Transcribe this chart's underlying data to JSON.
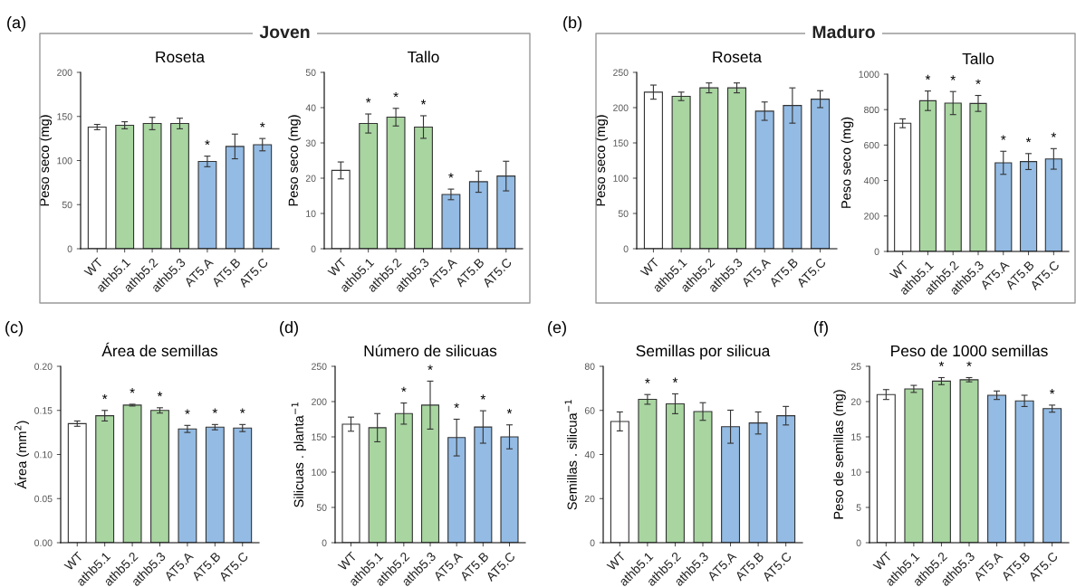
{
  "chart_data": [
    {
      "type": "bar",
      "title": "Roseta",
      "ylabel": "Peso seco (mg)",
      "categories": [
        "WT",
        "athb5.1",
        "athb5.2",
        "athb5.3",
        "AT5.A",
        "AT5.B",
        "AT5.C"
      ],
      "colors": [
        "#ffffff",
        "#a8d5a0",
        "#a8d5a0",
        "#a8d5a0",
        "#93bbe4",
        "#93bbe4",
        "#93bbe4"
      ],
      "values": [
        138,
        140,
        142,
        142,
        99,
        116,
        118
      ],
      "errors": [
        3,
        4,
        7,
        6,
        6,
        14,
        7
      ],
      "ylim": [
        0,
        200
      ],
      "yticks": [
        0,
        50,
        100,
        150,
        200
      ],
      "grid": false,
      "legend": false,
      "annotations": [
        "(a)",
        "Joven",
        {
          "text": "*",
          "x": "AT5.A",
          "y": 105
        },
        {
          "text": "*",
          "x": "AT5.C",
          "y": 125
        }
      ]
    },
    {
      "type": "bar",
      "title": "Tallo",
      "ylabel": "Peso seco (mg)",
      "categories": [
        "WT",
        "athb5.1",
        "athb5.2",
        "athb5.3",
        "AT5.A",
        "AT5.B",
        "AT5.C"
      ],
      "colors": [
        "#ffffff",
        "#a8d5a0",
        "#a8d5a0",
        "#a8d5a0",
        "#93bbe4",
        "#93bbe4",
        "#93bbe4"
      ],
      "values": [
        22.2,
        35.5,
        37.3,
        34.5,
        15.4,
        19,
        20.6
      ],
      "errors": [
        2.4,
        2.7,
        2.5,
        3.2,
        1.5,
        3,
        4.2
      ],
      "ylim": [
        0,
        50
      ],
      "yticks": [
        0,
        10,
        20,
        30,
        40,
        50
      ],
      "grid": false,
      "legend": false,
      "annotations": [
        {
          "text": "*",
          "x": "athb5.1",
          "y": 38.2
        },
        {
          "text": "*",
          "x": "athb5.2",
          "y": 39.8
        },
        {
          "text": "*",
          "x": "athb5.3",
          "y": 37.7
        },
        {
          "text": "*",
          "x": "AT5.A",
          "y": 16.9
        }
      ]
    },
    {
      "type": "bar",
      "title": "Roseta",
      "ylabel": "Peso seco (mg)",
      "categories": [
        "WT",
        "athb5.1",
        "athb5.2",
        "athb5.3",
        "AT5.A",
        "AT5.B",
        "AT5.C"
      ],
      "colors": [
        "#ffffff",
        "#a8d5a0",
        "#a8d5a0",
        "#a8d5a0",
        "#93bbe4",
        "#93bbe4",
        "#93bbe4"
      ],
      "values": [
        222,
        216,
        228,
        228,
        195,
        203,
        212
      ],
      "errors": [
        10,
        6,
        7,
        7,
        13,
        25,
        12
      ],
      "ylim": [
        0,
        250
      ],
      "yticks": [
        0,
        50,
        100,
        150,
        200,
        250
      ],
      "grid": false,
      "legend": false,
      "annotations": [
        "(b)",
        "Maduro"
      ]
    },
    {
      "type": "bar",
      "title": "Tallo",
      "ylabel": "Peso seco (mg)",
      "categories": [
        "WT",
        "athb5.1",
        "athb5.2",
        "athb5.3",
        "AT5.A",
        "AT5.B",
        "AT5.C"
      ],
      "colors": [
        "#ffffff",
        "#a8d5a0",
        "#a8d5a0",
        "#a8d5a0",
        "#93bbe4",
        "#93bbe4",
        "#93bbe4"
      ],
      "values": [
        723,
        850,
        837,
        835,
        500,
        507,
        522
      ],
      "errors": [
        25,
        55,
        65,
        45,
        65,
        45,
        58
      ],
      "ylim": [
        0,
        1000
      ],
      "yticks": [
        0,
        200,
        400,
        600,
        800,
        1000
      ],
      "grid": false,
      "legend": false,
      "annotations": [
        {
          "text": "*",
          "x": "athb5.1",
          "y": 905
        },
        {
          "text": "*",
          "x": "athb5.2",
          "y": 902
        },
        {
          "text": "*",
          "x": "athb5.3",
          "y": 880
        },
        {
          "text": "*",
          "x": "AT5.A",
          "y": 565
        },
        {
          "text": "*",
          "x": "AT5.B",
          "y": 552
        },
        {
          "text": "*",
          "x": "AT5.C",
          "y": 580
        }
      ]
    },
    {
      "type": "bar",
      "title": "Área de semillas",
      "ylabel": "Área (mm$^{2}$)",
      "categories": [
        "WT",
        "athb5.1",
        "athb5.2",
        "athb5.3",
        "AT5.A",
        "AT5.B",
        "AT5.C"
      ],
      "colors": [
        "#ffffff",
        "#a8d5a0",
        "#a8d5a0",
        "#a8d5a0",
        "#93bbe4",
        "#93bbe4",
        "#93bbe4"
      ],
      "values": [
        0.135,
        0.144,
        0.156,
        0.15,
        0.129,
        0.131,
        0.13
      ],
      "errors": [
        0.003,
        0.006,
        0.001,
        0.003,
        0.004,
        0.003,
        0.004
      ],
      "ylim": [
        0,
        0.2
      ],
      "yticks": [
        {
          "value": 0,
          "label": "0.00"
        },
        {
          "value": 0.05,
          "label": "0.05"
        },
        {
          "value": 0.1,
          "label": "0.10"
        },
        {
          "value": 0.15,
          "label": "0.15"
        },
        {
          "value": 0.2,
          "label": "0.20"
        }
      ],
      "grid": false,
      "legend": false,
      "annotations": [
        "(c)",
        {
          "text": "*",
          "x": "athb5.1",
          "y": 0.15
        },
        {
          "text": "*",
          "x": "athb5.2",
          "y": 0.157
        },
        {
          "text": "*",
          "x": "athb5.3",
          "y": 0.153
        },
        {
          "text": "*",
          "x": "AT5.A",
          "y": 0.133
        },
        {
          "text": "*",
          "x": "AT5.B",
          "y": 0.134
        },
        {
          "text": "*",
          "x": "AT5.C",
          "y": 0.134
        }
      ]
    },
    {
      "type": "bar",
      "title": "Número de silicuas",
      "ylabel": "Silicuas . planta$^{−1}$",
      "categories": [
        "WT",
        "athb5.1",
        "athb5.2",
        "athb5.3",
        "AT5.A",
        "AT5.B",
        "AT5.C"
      ],
      "colors": [
        "#ffffff",
        "#a8d5a0",
        "#a8d5a0",
        "#a8d5a0",
        "#93bbe4",
        "#93bbe4",
        "#93bbe4"
      ],
      "values": [
        168,
        163,
        183,
        195,
        149,
        164,
        150
      ],
      "errors": [
        10,
        20,
        15,
        34,
        26,
        23,
        17
      ],
      "ylim": [
        0,
        250
      ],
      "yticks": [
        0,
        50,
        100,
        150,
        200,
        250
      ],
      "grid": false,
      "legend": false,
      "annotations": [
        "(d)",
        {
          "text": "*",
          "x": "athb5.2",
          "y": 198
        },
        {
          "text": "*",
          "x": "athb5.3",
          "y": 229
        },
        {
          "text": "*",
          "x": "AT5.A",
          "y": 175
        },
        {
          "text": "*",
          "x": "AT5.B",
          "y": 187
        },
        {
          "text": "*",
          "x": "AT5.C",
          "y": 167
        }
      ]
    },
    {
      "type": "bar",
      "title": "Semillas por silicua",
      "ylabel": "Semillas . silicua$^{−1}$",
      "categories": [
        "WT",
        "athb5.1",
        "athb5.2",
        "athb5.3",
        "AT5.A",
        "AT5.B",
        "AT5.C"
      ],
      "colors": [
        "#ffffff",
        "#a8d5a0",
        "#a8d5a0",
        "#a8d5a0",
        "#93bbe4",
        "#93bbe4",
        "#93bbe4"
      ],
      "values": [
        55,
        65,
        63,
        59.5,
        52.6,
        54.3,
        57.6
      ],
      "errors": [
        4.3,
        2.2,
        4.5,
        4,
        7.5,
        5,
        4.2
      ],
      "ylim": [
        0,
        80
      ],
      "yticks": [
        0,
        20,
        40,
        60,
        80
      ],
      "grid": false,
      "legend": false,
      "annotations": [
        "(e)",
        {
          "text": "*",
          "x": "athb5.1",
          "y": 67.2
        },
        {
          "text": "*",
          "x": "athb5.2",
          "y": 67.5
        }
      ]
    },
    {
      "type": "bar",
      "title": "Peso de 1000 semillas",
      "ylabel": "Peso de semillas (mg)",
      "categories": [
        "WT",
        "athb5.1",
        "athb5.2",
        "athb5.3",
        "AT5.A",
        "AT5.B",
        "AT5.C"
      ],
      "colors": [
        "#ffffff",
        "#a8d5a0",
        "#a8d5a0",
        "#a8d5a0",
        "#93bbe4",
        "#93bbe4",
        "#93bbe4"
      ],
      "values": [
        21,
        21.8,
        22.9,
        23.1,
        20.9,
        20.1,
        19
      ],
      "errors": [
        0.7,
        0.5,
        0.5,
        0.3,
        0.6,
        0.8,
        0.5
      ],
      "ylim": [
        0,
        25
      ],
      "yticks": [
        0,
        5,
        10,
        15,
        20,
        25
      ],
      "grid": false,
      "legend": false,
      "annotations": [
        "(f)",
        {
          "text": "*",
          "x": "athb5.2",
          "y": 23.4
        },
        {
          "text": "*",
          "x": "athb5.3",
          "y": 23.4
        },
        {
          "text": "*",
          "x": "AT5.C",
          "y": 19.5
        }
      ]
    }
  ]
}
